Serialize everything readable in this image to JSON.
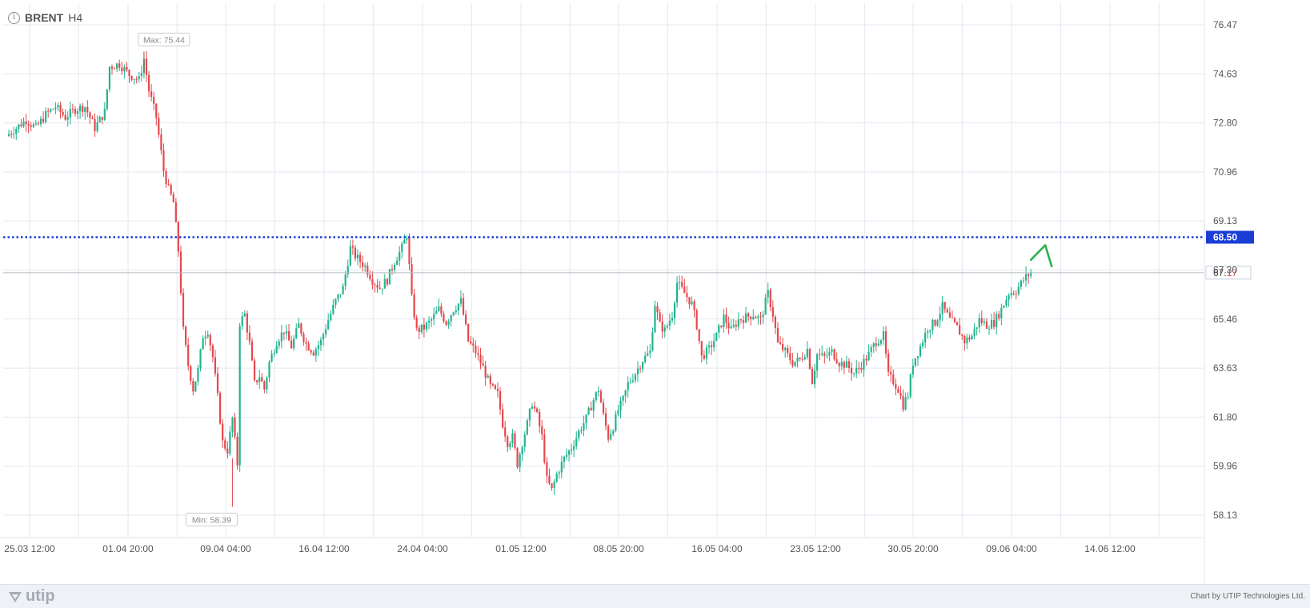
{
  "header": {
    "symbol": "BRENT",
    "timeframe": "H4"
  },
  "footer": {
    "brand": "utip",
    "credit": "Chart by UTIP Technologies Ltd."
  },
  "colors": {
    "up": "#22b48f",
    "down": "#e5484d",
    "level_line": "#1a3dd6",
    "grid": "#e3e8f0",
    "arrow": "#2ab14a"
  },
  "chart_data": {
    "type": "candlestick",
    "title": "BRENT",
    "timeframe": "H4",
    "ylim": [
      57.5,
      77.0
    ],
    "y_ticks": [
      "76.47",
      "74.63",
      "72.80",
      "70.96",
      "69.13",
      "67.30",
      "65.46",
      "63.63",
      "61.80",
      "59.96",
      "58.13"
    ],
    "x_tick_labels": [
      "25.03 12:00",
      "01.04 20:00",
      "09.04 04:00",
      "16.04 12:00",
      "24.04 04:00",
      "01.05 12:00",
      "08.05 20:00",
      "16.05 04:00",
      "23.05 12:00",
      "30.05 20:00",
      "09.06 04:00",
      "14.06 12:00"
    ],
    "max_label": "Max: 75.44",
    "min_label": "Min: 58.39",
    "level_line": {
      "value": 68.5,
      "label": "68.50"
    },
    "current_price": {
      "value": 67.17,
      "label_main": "67.",
      "label_tail": "17"
    },
    "price_path": [
      {
        "t": 0,
        "p": 72.3
      },
      {
        "t": 4,
        "p": 72.6
      },
      {
        "t": 8,
        "p": 72.9
      },
      {
        "t": 12,
        "p": 72.6
      },
      {
        "t": 16,
        "p": 73.1
      },
      {
        "t": 20,
        "p": 73.4
      },
      {
        "t": 24,
        "p": 73.0
      },
      {
        "t": 28,
        "p": 73.3
      },
      {
        "t": 32,
        "p": 73.4
      },
      {
        "t": 36,
        "p": 72.6
      },
      {
        "t": 40,
        "p": 73.2
      },
      {
        "t": 42,
        "p": 74.9
      },
      {
        "t": 46,
        "p": 75.0
      },
      {
        "t": 50,
        "p": 74.6
      },
      {
        "t": 54,
        "p": 74.4
      },
      {
        "t": 56,
        "p": 75.2
      },
      {
        "t": 58,
        "p": 74.0
      },
      {
        "t": 61,
        "p": 73.0
      },
      {
        "t": 64,
        "p": 71.0
      },
      {
        "t": 66,
        "p": 70.3
      },
      {
        "t": 68,
        "p": 69.8
      },
      {
        "t": 70,
        "p": 68.0
      },
      {
        "t": 72,
        "p": 65.0
      },
      {
        "t": 74,
        "p": 63.7
      },
      {
        "t": 76,
        "p": 62.8
      },
      {
        "t": 78,
        "p": 63.5
      },
      {
        "t": 80,
        "p": 64.8
      },
      {
        "t": 82,
        "p": 65.0
      },
      {
        "t": 84,
        "p": 64.0
      },
      {
        "t": 86,
        "p": 62.5
      },
      {
        "t": 88,
        "p": 60.8
      },
      {
        "t": 90,
        "p": 60.5
      },
      {
        "t": 92,
        "p": 61.7
      },
      {
        "t": 94,
        "p": 60.0
      },
      {
        "t": 95,
        "p": 65.3
      },
      {
        "t": 97,
        "p": 65.6
      },
      {
        "t": 99,
        "p": 64.5
      },
      {
        "t": 101,
        "p": 63.0
      },
      {
        "t": 103,
        "p": 63.3
      },
      {
        "t": 105,
        "p": 62.8
      },
      {
        "t": 107,
        "p": 63.8
      },
      {
        "t": 110,
        "p": 64.6
      },
      {
        "t": 113,
        "p": 65.0
      },
      {
        "t": 116,
        "p": 64.4
      },
      {
        "t": 119,
        "p": 65.2
      },
      {
        "t": 122,
        "p": 64.5
      },
      {
        "t": 125,
        "p": 64.2
      },
      {
        "t": 128,
        "p": 64.6
      },
      {
        "t": 131,
        "p": 65.4
      },
      {
        "t": 134,
        "p": 66.1
      },
      {
        "t": 137,
        "p": 66.6
      },
      {
        "t": 140,
        "p": 68.1
      },
      {
        "t": 142,
        "p": 67.8
      },
      {
        "t": 146,
        "p": 67.4
      },
      {
        "t": 149,
        "p": 66.9
      },
      {
        "t": 152,
        "p": 66.6
      },
      {
        "t": 155,
        "p": 66.9
      },
      {
        "t": 158,
        "p": 67.6
      },
      {
        "t": 161,
        "p": 68.1
      },
      {
        "t": 163,
        "p": 68.6
      },
      {
        "t": 165,
        "p": 66.2
      },
      {
        "t": 167,
        "p": 65.0
      },
      {
        "t": 170,
        "p": 65.1
      },
      {
        "t": 173,
        "p": 65.4
      },
      {
        "t": 176,
        "p": 65.8
      },
      {
        "t": 179,
        "p": 65.3
      },
      {
        "t": 182,
        "p": 65.8
      },
      {
        "t": 185,
        "p": 66.1
      },
      {
        "t": 188,
        "p": 64.6
      },
      {
        "t": 191,
        "p": 64.2
      },
      {
        "t": 194,
        "p": 63.6
      },
      {
        "t": 197,
        "p": 62.9
      },
      {
        "t": 200,
        "p": 62.6
      },
      {
        "t": 202,
        "p": 61.5
      },
      {
        "t": 204,
        "p": 60.8
      },
      {
        "t": 206,
        "p": 61.0
      },
      {
        "t": 208,
        "p": 60.0
      },
      {
        "t": 210,
        "p": 60.8
      },
      {
        "t": 212,
        "p": 61.5
      },
      {
        "t": 214,
        "p": 62.3
      },
      {
        "t": 216,
        "p": 61.8
      },
      {
        "t": 218,
        "p": 61.0
      },
      {
        "t": 220,
        "p": 59.4
      },
      {
        "t": 222,
        "p": 59.0
      },
      {
        "t": 224,
        "p": 59.6
      },
      {
        "t": 227,
        "p": 60.2
      },
      {
        "t": 230,
        "p": 60.6
      },
      {
        "t": 233,
        "p": 61.2
      },
      {
        "t": 236,
        "p": 61.7
      },
      {
        "t": 239,
        "p": 62.4
      },
      {
        "t": 241,
        "p": 62.8
      },
      {
        "t": 243,
        "p": 61.8
      },
      {
        "t": 245,
        "p": 61.0
      },
      {
        "t": 247,
        "p": 61.4
      },
      {
        "t": 249,
        "p": 62.0
      },
      {
        "t": 251,
        "p": 62.4
      },
      {
        "t": 253,
        "p": 63.0
      },
      {
        "t": 256,
        "p": 63.4
      },
      {
        "t": 259,
        "p": 63.9
      },
      {
        "t": 262,
        "p": 64.2
      },
      {
        "t": 264,
        "p": 66.0
      },
      {
        "t": 266,
        "p": 65.2
      },
      {
        "t": 268,
        "p": 65.0
      },
      {
        "t": 271,
        "p": 65.6
      },
      {
        "t": 273,
        "p": 66.8
      },
      {
        "t": 276,
        "p": 66.4
      },
      {
        "t": 279,
        "p": 66.0
      },
      {
        "t": 281,
        "p": 65.2
      },
      {
        "t": 283,
        "p": 64.0
      },
      {
        "t": 286,
        "p": 64.3
      },
      {
        "t": 289,
        "p": 64.8
      },
      {
        "t": 292,
        "p": 65.5
      },
      {
        "t": 295,
        "p": 65.0
      },
      {
        "t": 298,
        "p": 65.4
      },
      {
        "t": 301,
        "p": 65.5
      },
      {
        "t": 304,
        "p": 65.6
      },
      {
        "t": 307,
        "p": 65.4
      },
      {
        "t": 310,
        "p": 66.4
      },
      {
        "t": 312,
        "p": 65.6
      },
      {
        "t": 314,
        "p": 64.5
      },
      {
        "t": 317,
        "p": 64.2
      },
      {
        "t": 320,
        "p": 63.8
      },
      {
        "t": 323,
        "p": 63.9
      },
      {
        "t": 326,
        "p": 64.3
      },
      {
        "t": 328,
        "p": 63.1
      },
      {
        "t": 330,
        "p": 64.1
      },
      {
        "t": 333,
        "p": 64.0
      },
      {
        "t": 336,
        "p": 64.2
      },
      {
        "t": 339,
        "p": 63.8
      },
      {
        "t": 342,
        "p": 63.7
      },
      {
        "t": 345,
        "p": 63.4
      },
      {
        "t": 348,
        "p": 63.7
      },
      {
        "t": 351,
        "p": 64.1
      },
      {
        "t": 354,
        "p": 64.6
      },
      {
        "t": 357,
        "p": 64.8
      },
      {
        "t": 359,
        "p": 63.3
      },
      {
        "t": 361,
        "p": 63.1
      },
      {
        "t": 363,
        "p": 62.8
      },
      {
        "t": 365,
        "p": 62.2
      },
      {
        "t": 367,
        "p": 62.6
      },
      {
        "t": 369,
        "p": 63.8
      },
      {
        "t": 372,
        "p": 64.4
      },
      {
        "t": 375,
        "p": 65.1
      },
      {
        "t": 378,
        "p": 65.3
      },
      {
        "t": 381,
        "p": 65.9
      },
      {
        "t": 384,
        "p": 65.4
      },
      {
        "t": 387,
        "p": 65.1
      },
      {
        "t": 390,
        "p": 64.6
      },
      {
        "t": 393,
        "p": 64.8
      },
      {
        "t": 396,
        "p": 65.4
      },
      {
        "t": 399,
        "p": 65.2
      },
      {
        "t": 402,
        "p": 65.3
      },
      {
        "t": 405,
        "p": 65.8
      },
      {
        "t": 408,
        "p": 66.4
      },
      {
        "t": 411,
        "p": 66.5
      },
      {
        "t": 414,
        "p": 66.9
      },
      {
        "t": 417,
        "p": 67.2
      }
    ]
  }
}
